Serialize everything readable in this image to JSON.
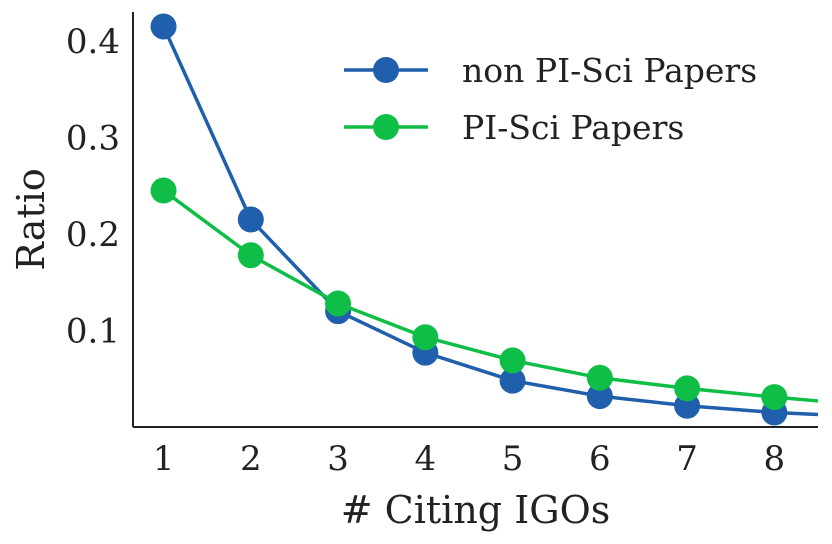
{
  "chart_data": {
    "type": "line",
    "xlabel": "# Citing IGOs",
    "ylabel": "Ratio",
    "x_ticks": [
      "1",
      "2",
      "3",
      "4",
      "5",
      "6",
      "7",
      "8"
    ],
    "y_ticks": [
      "0.1",
      "0.2",
      "0.3",
      "0.4"
    ],
    "xlim": [
      0.65,
      8.5
    ],
    "ylim": [
      0.0,
      0.43
    ],
    "grid": false,
    "legend_position": "top-right",
    "series": [
      {
        "name": "non PI-Sci Papers",
        "color": "#1f5fab",
        "x": [
          1,
          2,
          3,
          4,
          5,
          6,
          7,
          8
        ],
        "values": [
          0.415,
          0.215,
          0.12,
          0.077,
          0.048,
          0.032,
          0.022,
          0.015
        ],
        "tail": {
          "x": 8.5,
          "y": 0.013
        }
      },
      {
        "name": "PI-Sci Papers",
        "color": "#0fbe47",
        "x": [
          1,
          2,
          3,
          4,
          5,
          6,
          7,
          8
        ],
        "values": [
          0.245,
          0.178,
          0.128,
          0.093,
          0.069,
          0.051,
          0.04,
          0.031
        ],
        "tail": {
          "x": 8.5,
          "y": 0.027
        }
      }
    ]
  }
}
